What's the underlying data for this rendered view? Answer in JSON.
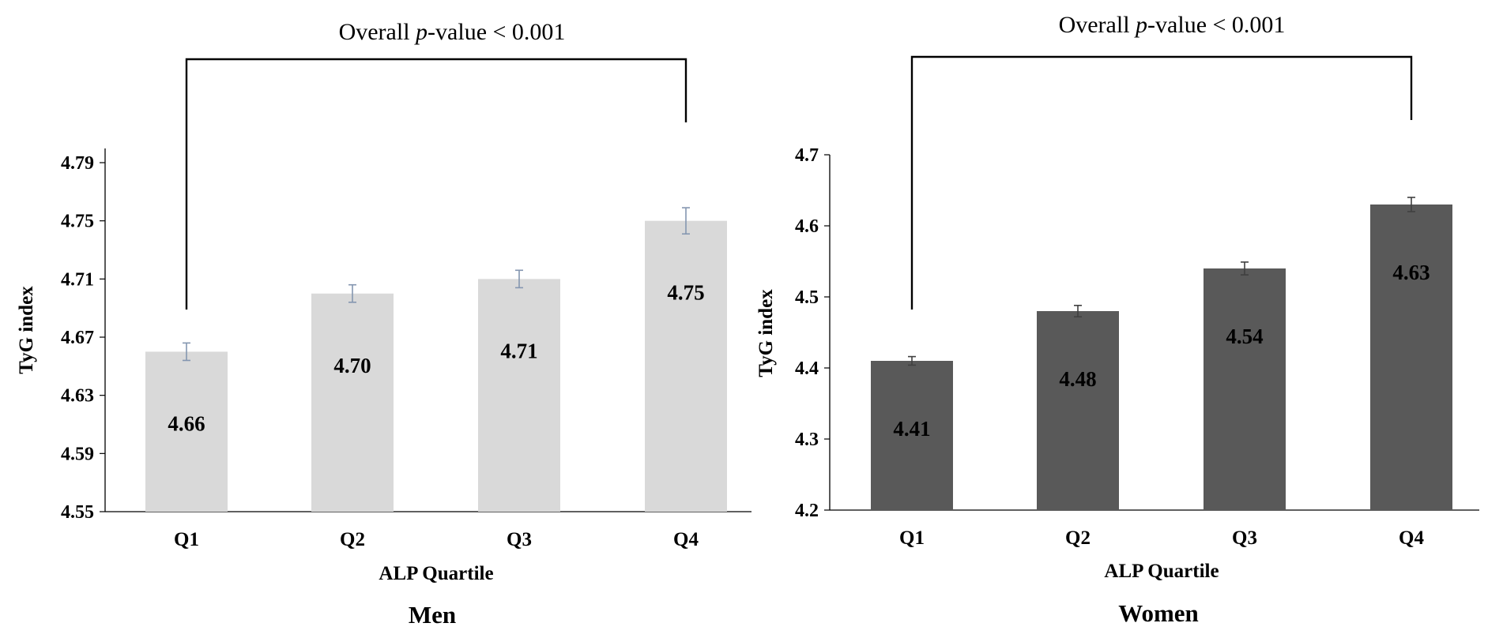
{
  "chart_data": [
    {
      "type": "bar",
      "panel": "Men",
      "panel_label": "Men",
      "annotation": {
        "prefix": "Overall ",
        "italic": "p",
        "suffix": "-value < 0.001"
      },
      "categories": [
        "Q1",
        "Q2",
        "Q3",
        "Q4"
      ],
      "values": [
        4.66,
        4.7,
        4.71,
        4.75
      ],
      "value_labels": [
        "4.66",
        "4.70",
        "4.71",
        "4.75"
      ],
      "error": [
        0.006,
        0.006,
        0.006,
        0.009
      ],
      "ylabel": "TyG index",
      "xlabel": "ALP Quartile",
      "ylim": [
        4.55,
        4.81
      ],
      "yticks": [
        "4.55",
        "4.59",
        "4.63",
        "4.67",
        "4.71",
        "4.75",
        "4.79"
      ],
      "bar_color": "#d9d9d9",
      "error_color": "#8496b0",
      "grid": false
    },
    {
      "type": "bar",
      "panel": "Women",
      "panel_label": "Women",
      "annotation": {
        "prefix": "Overall ",
        "italic": "p",
        "suffix": "-value < 0.001"
      },
      "categories": [
        "Q1",
        "Q2",
        "Q3",
        "Q4"
      ],
      "values": [
        4.41,
        4.48,
        4.54,
        4.63
      ],
      "value_labels": [
        "4.41",
        "4.48",
        "4.54",
        "4.63"
      ],
      "error": [
        0.006,
        0.008,
        0.009,
        0.01
      ],
      "ylabel": "TyG index",
      "xlabel": "ALP Quartile",
      "ylim": [
        4.2,
        4.7
      ],
      "yticks": [
        "4.2",
        "4.3",
        "4.4",
        "4.5",
        "4.6",
        "4.7"
      ],
      "bar_color": "#595959",
      "error_color": "#404040",
      "grid": false
    }
  ]
}
